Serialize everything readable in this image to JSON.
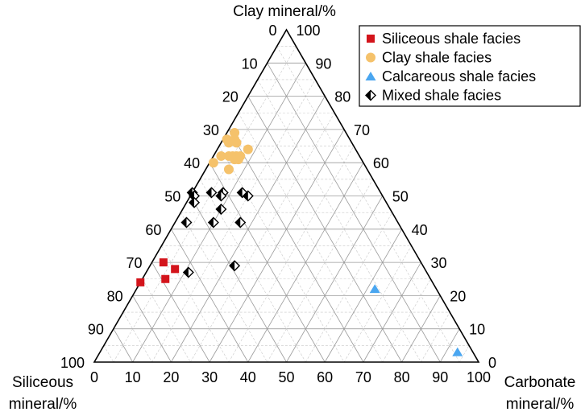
{
  "chart_data": {
    "type": "scatter",
    "subtype": "ternary",
    "axes": {
      "top": {
        "label": "Clay mineral/%"
      },
      "left": {
        "label_lines": [
          "Siliceous",
          "mineral/%"
        ]
      },
      "right": {
        "label_lines": [
          "Carbonate",
          "mineral/%"
        ]
      }
    },
    "ticks": {
      "clay": [
        0,
        10,
        20,
        30,
        40,
        50,
        60,
        70,
        80,
        90,
        100
      ],
      "carbonate": [
        0,
        10,
        20,
        30,
        40,
        50,
        60,
        70,
        80,
        90,
        100
      ],
      "siliceous": [
        100,
        90,
        80,
        70,
        60,
        50,
        40,
        30,
        20,
        10,
        0
      ]
    },
    "legend_position": "top-right",
    "series": [
      {
        "name": "Siliceous shale facies",
        "marker": "square",
        "color": "#d3141b",
        "points": [
          {
            "clay": 24,
            "carbonate": 0
          },
          {
            "clay": 30,
            "carbonate": 3
          },
          {
            "clay": 28,
            "carbonate": 7
          },
          {
            "clay": 25,
            "carbonate": 6
          }
        ]
      },
      {
        "name": "Clay shale facies",
        "marker": "circle",
        "color": "#f5c26b",
        "points": [
          {
            "clay": 69,
            "carbonate": 2
          },
          {
            "clay": 67,
            "carbonate": 1
          },
          {
            "clay": 66,
            "carbonate": 2
          },
          {
            "clay": 67,
            "carbonate": 3
          },
          {
            "clay": 66,
            "carbonate": 4
          },
          {
            "clay": 64,
            "carbonate": 8
          },
          {
            "clay": 62,
            "carbonate": 2
          },
          {
            "clay": 62,
            "carbonate": 4
          },
          {
            "clay": 62,
            "carbonate": 5
          },
          {
            "clay": 61,
            "carbonate": 6
          },
          {
            "clay": 62,
            "carbonate": 6
          },
          {
            "clay": 61,
            "carbonate": 7
          },
          {
            "clay": 62,
            "carbonate": 7
          },
          {
            "clay": 60,
            "carbonate": 1
          },
          {
            "clay": 58,
            "carbonate": 6
          }
        ]
      },
      {
        "name": "Calcareous shale facies",
        "marker": "triangle",
        "color": "#4aa6f0",
        "points": [
          {
            "clay": 3,
            "carbonate": 93
          },
          {
            "clay": 22,
            "carbonate": 62
          }
        ]
      },
      {
        "name": "Mixed shale facies",
        "marker": "diamond",
        "color": "#000000",
        "points": [
          {
            "clay": 51,
            "carbonate": 0
          },
          {
            "clay": 50,
            "carbonate": 1
          },
          {
            "clay": 48,
            "carbonate": 2
          },
          {
            "clay": 51,
            "carbonate": 5
          },
          {
            "clay": 51,
            "carbonate": 8
          },
          {
            "clay": 50,
            "carbonate": 8
          },
          {
            "clay": 51,
            "carbonate": 13
          },
          {
            "clay": 50,
            "carbonate": 15
          },
          {
            "clay": 46,
            "carbonate": 10
          },
          {
            "clay": 42,
            "carbonate": 3
          },
          {
            "clay": 42,
            "carbonate": 10
          },
          {
            "clay": 42,
            "carbonate": 17
          },
          {
            "clay": 29,
            "carbonate": 22
          },
          {
            "clay": 27,
            "carbonate": 11
          }
        ]
      }
    ]
  }
}
